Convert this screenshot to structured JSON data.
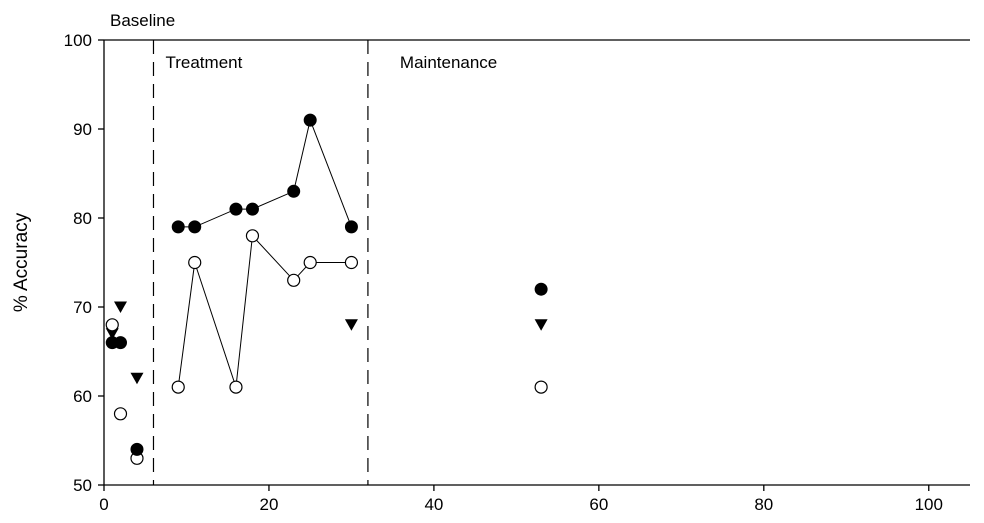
{
  "chart_data": {
    "type": "scatter",
    "title": "",
    "xlabel": "",
    "ylabel": "% Accuracy",
    "xlim": [
      0,
      105
    ],
    "ylim": [
      50,
      100
    ],
    "x_ticks": [
      0,
      20,
      40,
      60,
      80,
      100
    ],
    "y_ticks": [
      50,
      60,
      70,
      80,
      90,
      100
    ],
    "grid": false,
    "legend": null,
    "phases": [
      {
        "label": "Baseline",
        "start": 0,
        "end": 6
      },
      {
        "label": "Treatment",
        "start": 6,
        "end": 32
      },
      {
        "label": "Maintenance",
        "start": 32,
        "end": 105
      }
    ],
    "phase_boundaries": [
      6,
      32
    ],
    "series": [
      {
        "marker": "filled-circle",
        "points": [
          {
            "x": 1,
            "y": 66,
            "connect": false
          },
          {
            "x": 2,
            "y": 66,
            "connect": false
          },
          {
            "x": 4,
            "y": 54,
            "connect": false
          },
          {
            "x": 9,
            "y": 79,
            "connect": true
          },
          {
            "x": 11,
            "y": 79,
            "connect": true
          },
          {
            "x": 16,
            "y": 81,
            "connect": true
          },
          {
            "x": 18,
            "y": 81,
            "connect": true
          },
          {
            "x": 23,
            "y": 83,
            "connect": true
          },
          {
            "x": 25,
            "y": 91,
            "connect": true
          },
          {
            "x": 30,
            "y": 79,
            "connect": true
          },
          {
            "x": 53,
            "y": 72,
            "connect": false
          }
        ]
      },
      {
        "marker": "open-circle",
        "points": [
          {
            "x": 1,
            "y": 68,
            "connect": false
          },
          {
            "x": 2,
            "y": 58,
            "connect": false
          },
          {
            "x": 4,
            "y": 53,
            "connect": false
          },
          {
            "x": 9,
            "y": 61,
            "connect": true
          },
          {
            "x": 11,
            "y": 75,
            "connect": true
          },
          {
            "x": 16,
            "y": 61,
            "connect": true
          },
          {
            "x": 18,
            "y": 78,
            "connect": true
          },
          {
            "x": 23,
            "y": 73,
            "connect": true
          },
          {
            "x": 25,
            "y": 75,
            "connect": true
          },
          {
            "x": 30,
            "y": 75,
            "connect": true
          },
          {
            "x": 53,
            "y": 61,
            "connect": false
          }
        ]
      },
      {
        "marker": "filled-triangle-down",
        "points": [
          {
            "x": 1,
            "y": 67,
            "connect": false
          },
          {
            "x": 2,
            "y": 70,
            "connect": false
          },
          {
            "x": 4,
            "y": 62,
            "connect": false
          },
          {
            "x": 30,
            "y": 68,
            "connect": false
          },
          {
            "x": 53,
            "y": 68,
            "connect": false
          }
        ]
      }
    ]
  }
}
